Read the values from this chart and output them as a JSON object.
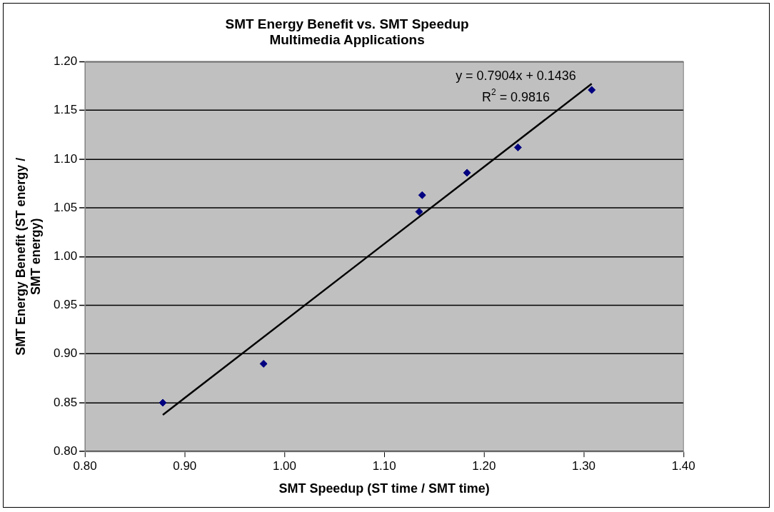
{
  "chart_data": {
    "type": "scatter",
    "title": "SMT Energy Benefit vs. SMT Speedup",
    "subtitle": "Multimedia Applications",
    "xlabel": "SMT Speedup (ST time / SMT time)",
    "ylabel": "SMT Energy Benefit (ST energy / SMT energy)",
    "annotations": [
      "y = 0.7904x + 0.1436",
      "R$^{2}$ = 0.9816"
    ],
    "xlim": [
      0.8,
      1.4
    ],
    "xticks": [
      {
        "value": 0.8,
        "label": "0.80"
      },
      {
        "value": 0.9,
        "label": "0.90"
      },
      {
        "value": 1.0,
        "label": "1.00"
      },
      {
        "value": 1.1,
        "label": "1.10"
      },
      {
        "value": 1.2,
        "label": "1.20"
      },
      {
        "value": 1.3,
        "label": "1.30"
      },
      {
        "value": 1.4,
        "label": "1.40"
      }
    ],
    "ylim": [
      0.8,
      1.2
    ],
    "yticks": [
      {
        "value": 0.8,
        "label": "0.80"
      },
      {
        "value": 0.85,
        "label": "0.85"
      },
      {
        "value": 0.9,
        "label": "0.90"
      },
      {
        "value": 0.95,
        "label": "0.95"
      },
      {
        "value": 1.0,
        "label": "1.00"
      },
      {
        "value": 1.05,
        "label": "1.05"
      },
      {
        "value": 1.1,
        "label": "1.10"
      },
      {
        "value": 1.15,
        "label": "1.15"
      },
      {
        "value": 1.2,
        "label": "1.20"
      }
    ],
    "grid": "y",
    "legend": false,
    "marker": "diamond",
    "series": [
      {
        "color": "#000080",
        "x": [
          0.878,
          0.979,
          1.135,
          1.138,
          1.183,
          1.234,
          1.308
        ],
        "values": [
          0.85,
          0.89,
          1.046,
          1.063,
          1.086,
          1.112,
          1.171
        ]
      },
      {
        "type": "line",
        "color": "#000000",
        "marker": "none",
        "line_style": "solid",
        "x": [
          0.878,
          1.308
        ],
        "values": [
          0.8376,
          1.1774
        ]
      }
    ]
  }
}
